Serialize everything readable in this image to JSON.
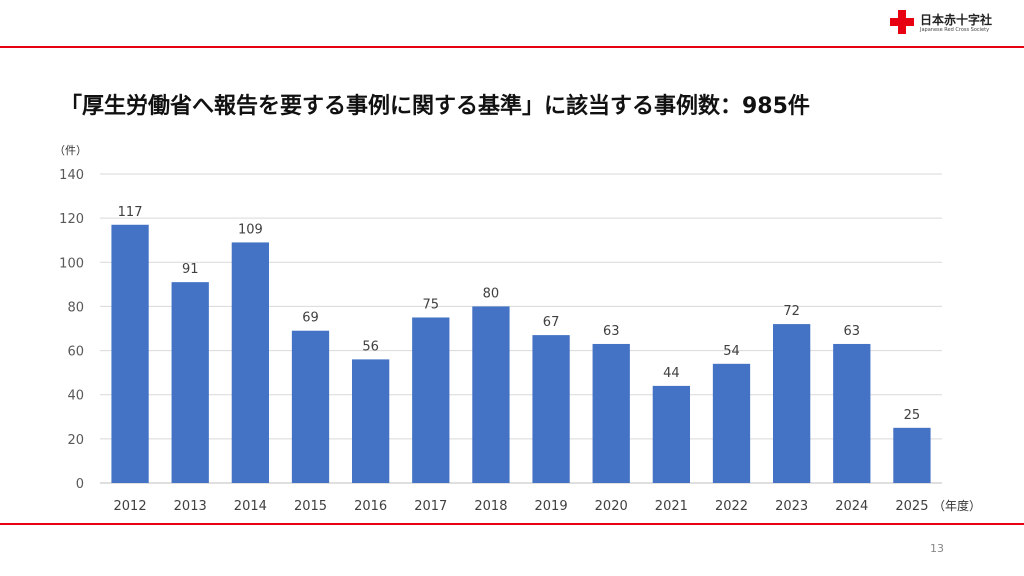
{
  "header": {
    "logo_text": "日本赤十字社",
    "logo_subtext": "Japanese Red Cross Society",
    "title": "「厚生労働省へ報告を要する事例に関する基準」に該当する事例数：985件"
  },
  "footer": {
    "page_number": "13"
  },
  "colors": {
    "accent": "#e60012",
    "bar": "#4472c4",
    "grid": "#d9d9d9"
  },
  "chart_data": {
    "type": "bar",
    "title": "「厚生労働省へ報告を要する事例に関する基準」に該当する事例数：985件",
    "ylabel": "（件）",
    "xlabel": "（年度）",
    "ylim": [
      0,
      140
    ],
    "yticks": [
      0,
      20,
      40,
      60,
      80,
      100,
      120,
      140
    ],
    "grid": true,
    "data_labels": true,
    "categories": [
      "2012",
      "2013",
      "2014",
      "2015",
      "2016",
      "2017",
      "2018",
      "2019",
      "2020",
      "2021",
      "2022",
      "2023",
      "2024",
      "2025"
    ],
    "values": [
      117,
      91,
      109,
      69,
      56,
      75,
      80,
      67,
      63,
      44,
      54,
      72,
      63,
      25
    ]
  }
}
